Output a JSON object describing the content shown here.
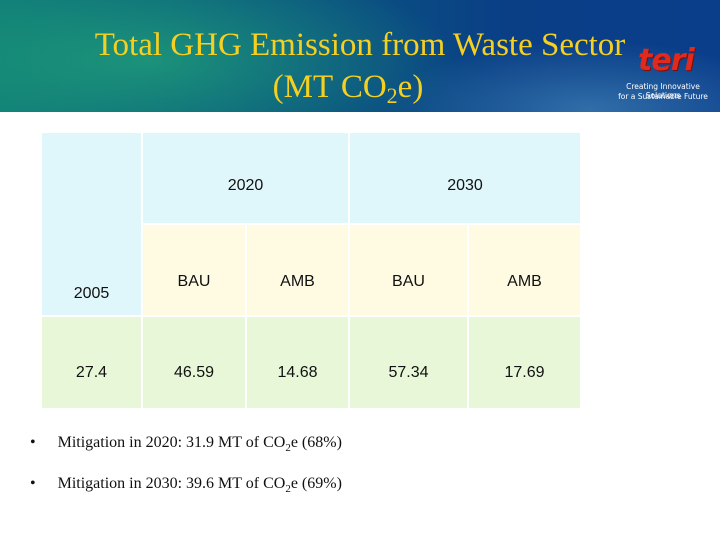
{
  "slide": {
    "title_line1": "Total GHG Emission from Waste Sector",
    "title_line2_pre": "(MT CO",
    "title_line2_sub": "2",
    "title_line2_post": "e)"
  },
  "logo": {
    "mark": "teri",
    "tagline_line1": "Creating Innovative Solutions",
    "tagline_line2": "for a Sustainable Future"
  },
  "table": {
    "year_2020": "2020",
    "year_2030": "2030",
    "base_year": "2005",
    "scenarios": [
      "BAU",
      "AMB",
      "BAU",
      "AMB"
    ],
    "base_value": "27.4",
    "values": [
      "46.59",
      "14.68",
      "57.34",
      "17.69"
    ]
  },
  "bullets": [
    {
      "pre": "Mitigation in 2020: 31.9 MT of CO",
      "sub": "2",
      "post": "e (68%)"
    },
    {
      "pre": "Mitigation in 2030: 39.6 MT of CO",
      "sub": "2",
      "post": "e (69%)"
    }
  ],
  "colors": {
    "title": "#f5d020",
    "header_fill": "#dff6fb",
    "scenario_fill": "#fffbe2",
    "value_fill": "#e7f7d8",
    "logo_red": "#e02a1d"
  }
}
